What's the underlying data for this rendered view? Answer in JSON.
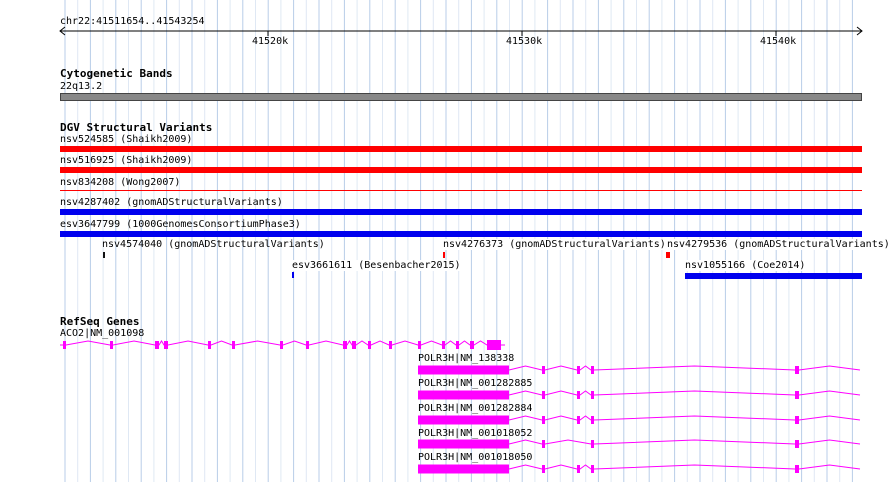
{
  "ruler": {
    "region": "chr22:41511654..41543254",
    "ticks": [
      {
        "label": "41520k"
      },
      {
        "label": "41530k"
      },
      {
        "label": "41540k"
      }
    ]
  },
  "tracks": {
    "cytoband": {
      "title": "Cytogenetic Bands",
      "band_label": "22q13.2",
      "band_color": "#888888"
    },
    "dgv": {
      "title": "DGV Structural Variants",
      "colors": {
        "loss": "#ff0000",
        "gain": "#0000ee",
        "neutral": "#111111"
      },
      "features": [
        {
          "id": "nsv524585",
          "label": "nsv524585 (Shaikh2009)",
          "type": "loss"
        },
        {
          "id": "nsv516925",
          "label": "nsv516925 (Shaikh2009)",
          "type": "loss"
        },
        {
          "id": "nsv834208",
          "label": "nsv834208 (Wong2007)",
          "type": "loss"
        },
        {
          "id": "nsv4287402",
          "label": "nsv4287402 (gnomADStructuralVariants)",
          "type": "gain"
        },
        {
          "id": "esv3647799",
          "label": "esv3647799 (1000GenomesConsortiumPhase3)",
          "type": "gain"
        },
        {
          "id": "nsv4574040",
          "label": "nsv4574040 (gnomADStructuralVariants)",
          "type": "neutral"
        },
        {
          "id": "nsv4276373",
          "label": "nsv4276373 (gnomADStructuralVariants)",
          "type": "loss"
        },
        {
          "id": "nsv4279536",
          "label": "nsv4279536 (gnomADStructuralVariants)",
          "type": "loss"
        },
        {
          "id": "esv3661611",
          "label": "esv3661611 (Besenbacher2015)",
          "type": "gain"
        },
        {
          "id": "nsv1055166",
          "label": "nsv1055166 (Coe2014)",
          "type": "gain"
        }
      ]
    },
    "refseq": {
      "title": "RefSeq Genes",
      "color": "#ff00ff",
      "genes": [
        {
          "id": "aco2",
          "label": "ACO2|NM_001098"
        },
        {
          "id": "polr3h-138338",
          "label": "POLR3H|NM_138338"
        },
        {
          "id": "polr3h-001282885",
          "label": "POLR3H|NM_001282885"
        },
        {
          "id": "polr3h-001282884",
          "label": "POLR3H|NM_001282884"
        },
        {
          "id": "polr3h-001018052",
          "label": "POLR3H|NM_001018052"
        },
        {
          "id": "polr3h-001018050",
          "label": "POLR3H|NM_001018050"
        }
      ]
    }
  }
}
